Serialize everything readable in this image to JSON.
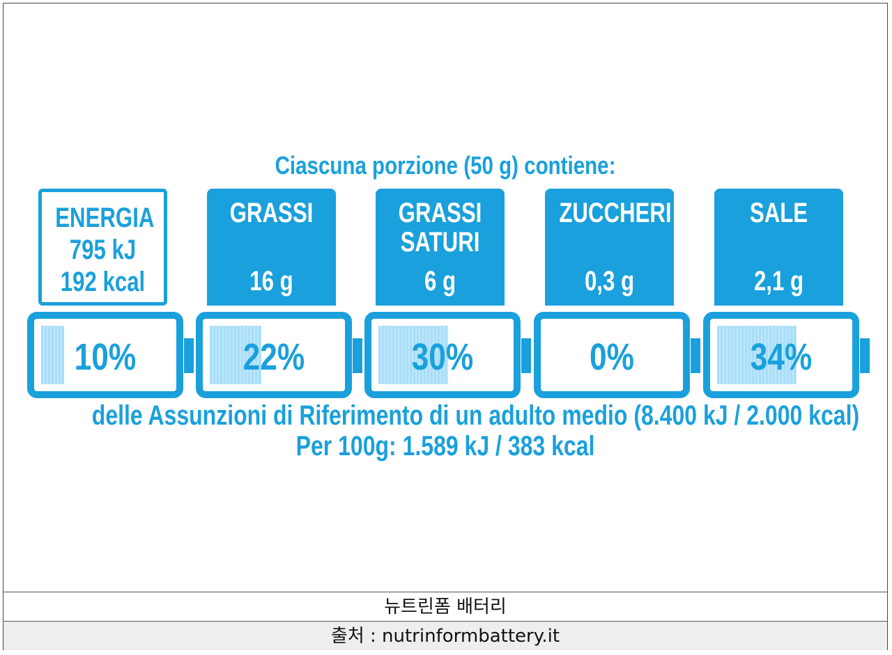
{
  "label": {
    "title": "Ciascuna porzione (50 g) contiene:",
    "accent_color": "#1aa0dc",
    "fill_color": "#a9defa",
    "items": [
      {
        "name": "ENERGIA\n795 kJ\n192 kcal",
        "amount": "",
        "percent": "10%",
        "percent_value": 10
      },
      {
        "name": "GRASSI",
        "amount": "16 g",
        "percent": "22%",
        "percent_value": 22
      },
      {
        "name": "GRASSI\nSATURI",
        "amount": "6 g",
        "percent": "30%",
        "percent_value": 30
      },
      {
        "name": "ZUCCHERI",
        "amount": "0,3 g",
        "percent": "0%",
        "percent_value": 0
      },
      {
        "name": "SALE",
        "amount": "2,1 g",
        "percent": "34%",
        "percent_value": 34
      }
    ],
    "reference_text": "delle Assunzioni di Riferimento di un adulto medio (8.400 kJ / 2.000 kcal)",
    "per_100g": "Per 100g: 1.589 kJ / 383 kcal"
  },
  "caption": {
    "title": "뉴트린폼 배터리",
    "source": "출처 : nutrinformbattery.it"
  }
}
